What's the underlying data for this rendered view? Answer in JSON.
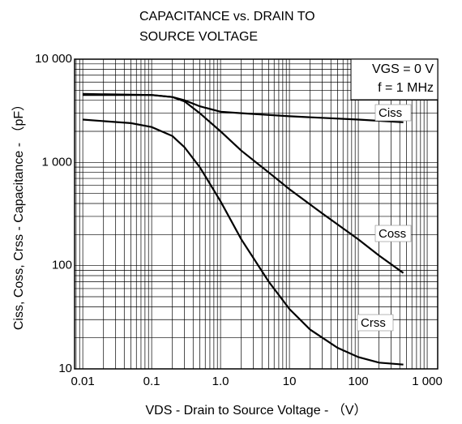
{
  "chart_data": {
    "type": "line",
    "title": [
      "CAPACITANCE vs. DRAIN TO",
      "SOURCE VOLTAGE"
    ],
    "x_label": "VDS - Drain to Source Voltage - （V）",
    "y_label": "Ciss, Coss, Crss - Capacitance - （pF）",
    "annotations": [
      "VGS = 0 V",
      "f = 1 MHz"
    ],
    "xscale": "log",
    "yscale": "log",
    "grid": true,
    "xlim": [
      0.0076,
      1420
    ],
    "ylim": [
      10,
      10000
    ],
    "xticks": [
      0.01,
      0.1,
      {
        "value": 1,
        "label": "1.0"
      },
      10,
      100,
      {
        "value": 1000,
        "label": "1 000"
      }
    ],
    "yticks": [
      10,
      100,
      {
        "value": 1000,
        "label": "1 000"
      },
      {
        "value": 10000,
        "label": "10 000"
      }
    ],
    "series": [
      {
        "name": "Ciss",
        "color": "#000000",
        "x": [
          0.01,
          0.1,
          0.2,
          0.3,
          0.5,
          1,
          2,
          10,
          100,
          450
        ],
        "values": [
          4500,
          4500,
          4300,
          4000,
          3500,
          3100,
          3000,
          2800,
          2600,
          2450
        ]
      },
      {
        "name": "Coss",
        "color": "#000000",
        "x": [
          0.01,
          0.1,
          0.2,
          0.3,
          0.5,
          1,
          2,
          5,
          10,
          30,
          100,
          200,
          450
        ],
        "values": [
          4600,
          4500,
          4300,
          3900,
          3000,
          2000,
          1300,
          800,
          550,
          320,
          180,
          125,
          85
        ]
      },
      {
        "name": "Crss",
        "color": "#000000",
        "x": [
          0.01,
          0.05,
          0.1,
          0.2,
          0.3,
          0.5,
          1,
          2,
          5,
          10,
          20,
          50,
          100,
          200,
          450
        ],
        "values": [
          2600,
          2400,
          2200,
          1800,
          1400,
          900,
          420,
          180,
          70,
          38,
          24,
          16,
          13,
          11.5,
          11
        ]
      }
    ]
  }
}
